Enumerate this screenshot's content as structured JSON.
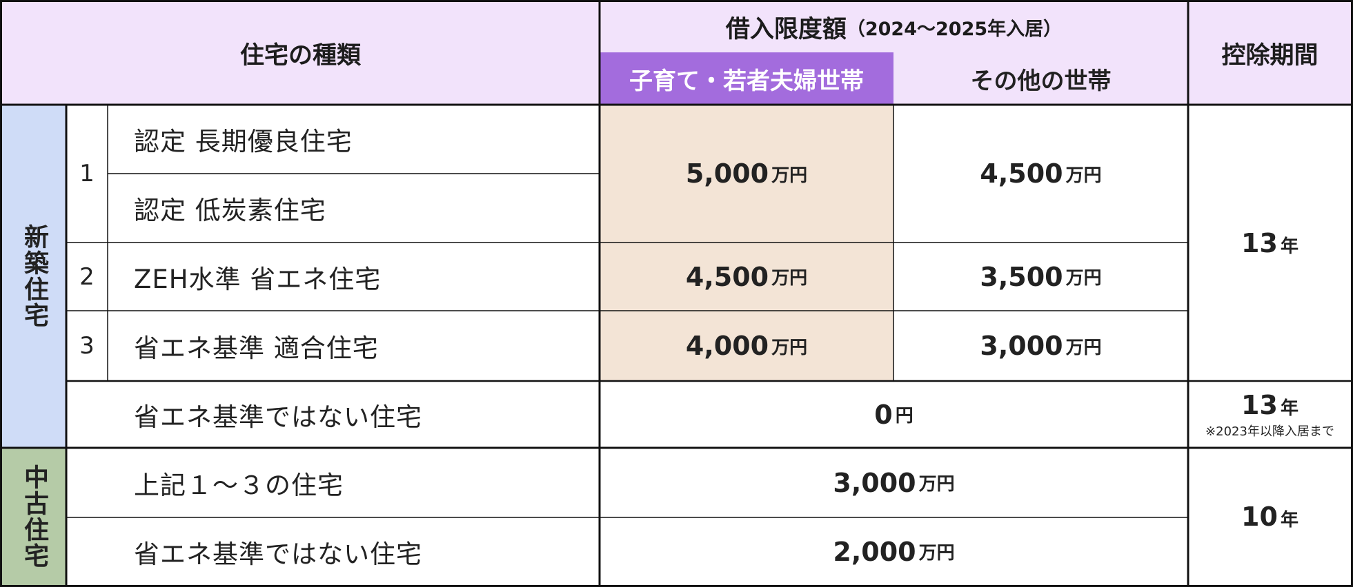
{
  "header": {
    "house_type": "住宅の種類",
    "limit_title": "借入限度額",
    "limit_period": "（2024～2025年入居）",
    "kids_column": "子育て・若者夫婦世帯",
    "other_column": "その他の世帯",
    "deduction_period": "控除期間"
  },
  "groups": {
    "new": "新築住宅",
    "used": "中古住宅"
  },
  "rows": {
    "r1a": "認定 長期優良住宅",
    "r1b": "認定 低炭素住宅",
    "r2": "ZEH水準 省エネ住宅",
    "r3": "省エネ基準 適合住宅",
    "r4": "省エネ基準ではない住宅",
    "r5": "上記１～３の住宅",
    "r6": "省エネ基準ではない住宅"
  },
  "numbers": {
    "n1": "1",
    "n2": "2",
    "n3": "3"
  },
  "amounts": {
    "a1_kids": "5,000",
    "a1_other": "4,500",
    "a2_kids": "4,500",
    "a2_other": "3,500",
    "a3_kids": "4,000",
    "a3_other": "3,000",
    "a4": "0",
    "a5": "3,000",
    "a6": "2,000"
  },
  "units": {
    "man_yen": "万円",
    "yen": "円"
  },
  "periods": {
    "p_new": "13",
    "p_non": "13",
    "p_non_note": "※2023年以降入居まで",
    "p_used": "10",
    "year": "年"
  }
}
